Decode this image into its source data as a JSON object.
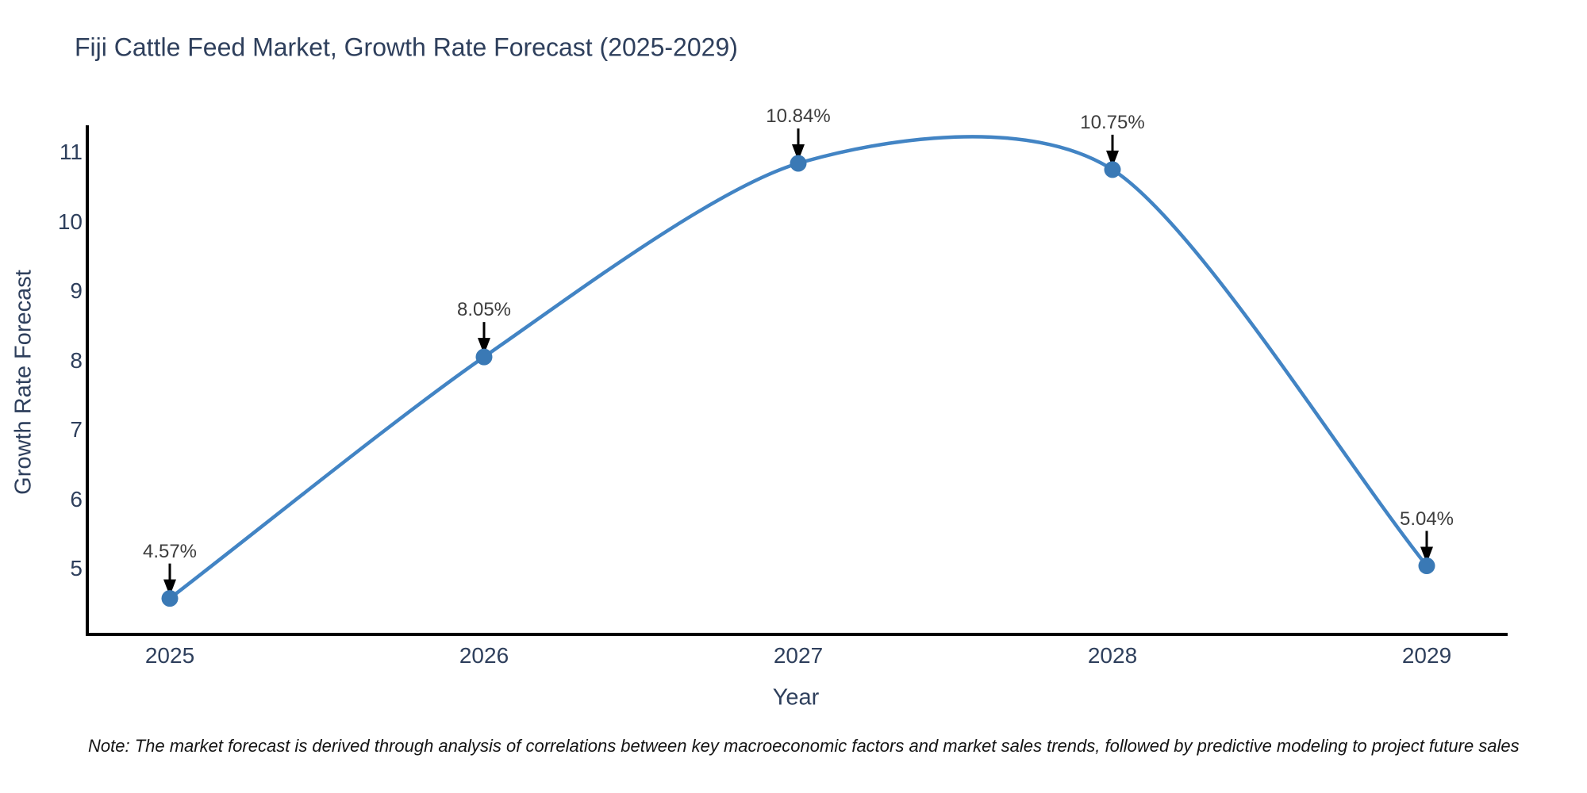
{
  "chart_data": {
    "type": "line",
    "title": "Fiji Cattle Feed Market, Growth Rate Forecast (2025-2029)",
    "xlabel": "Year",
    "ylabel": "Growth Rate Forecast",
    "categories": [
      "2025",
      "2026",
      "2027",
      "2028",
      "2029"
    ],
    "series": [
      {
        "name": "Growth Rate Forecast",
        "values": [
          4.57,
          8.05,
          10.84,
          10.75,
          5.04
        ]
      }
    ],
    "point_labels": [
      "4.57%",
      "8.05%",
      "10.84%",
      "10.75%",
      "5.04%"
    ],
    "yticks": [
      5,
      6,
      7,
      8,
      9,
      10,
      11
    ],
    "ylim": [
      4.05,
      11.4
    ],
    "grid": false,
    "legend": "none",
    "smooth": true,
    "line_color": "#4284c4",
    "marker_color": "#3a79b5",
    "axis_color": "#000000",
    "annotation_arrow_color": "#000000",
    "note": "Note: The market forecast is derived through analysis of correlations between key macroeconomic factors and market sales trends, followed by predictive modeling to project future sales"
  }
}
